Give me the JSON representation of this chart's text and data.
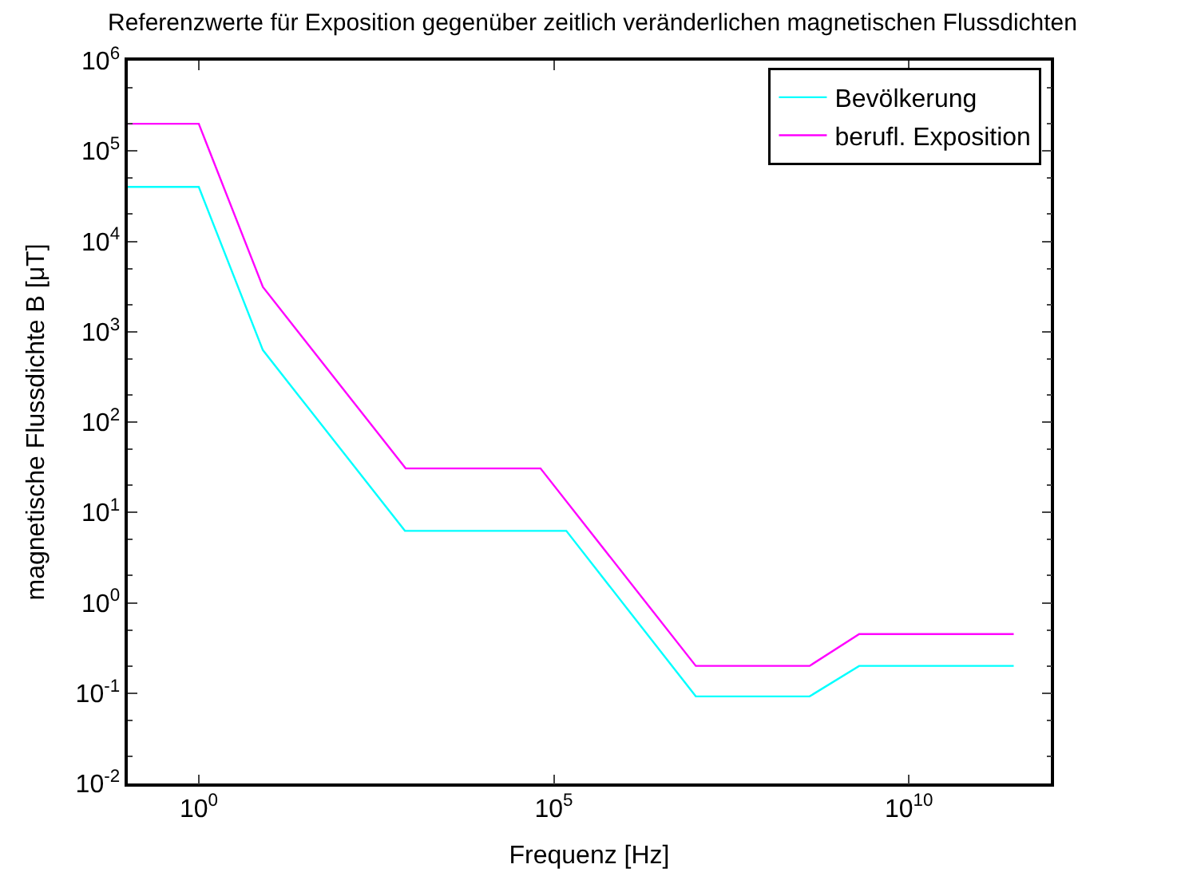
{
  "chart_data": {
    "type": "line",
    "title": "Referenzwerte für Exposition gegenüber zeitlich veränderlichen magnetischen Flussdichten",
    "xlabel": "Frequenz [Hz]",
    "ylabel": "magnetische Flussdichte B [μT]",
    "log": "xy",
    "legend": "top right",
    "marker": "none",
    "line_style": "solid",
    "xlim": [
      0.1,
      1000000000000
    ],
    "ylim": [
      0.01,
      1000000
    ],
    "xticks": [
      {
        "value": 1,
        "label": "10$^{0}$"
      },
      {
        "value": 100000,
        "label": "10$^{5}$"
      },
      {
        "value": 10000000000,
        "label": "10$^{10}$"
      }
    ],
    "yticks": [
      {
        "value": 0.01,
        "label": "10$^{-2}$"
      },
      {
        "value": 0.1,
        "label": "10$^{-1}$"
      },
      {
        "value": 1,
        "label": "10$^{0}$"
      },
      {
        "value": 10,
        "label": "10$^{1}$"
      },
      {
        "value": 100,
        "label": "10$^{2}$"
      },
      {
        "value": 1000,
        "label": "10$^{3}$"
      },
      {
        "value": 10000,
        "label": "10$^{4}$"
      },
      {
        "value": 100000,
        "label": "10$^{5}$"
      },
      {
        "value": 1000000,
        "label": "10$^{6}$"
      }
    ],
    "series": [
      {
        "name": "Bevölkerung",
        "color": "#00ffff",
        "x": [
          0.1,
          1,
          8,
          25,
          800,
          150000,
          10000000,
          400000000,
          2000000000,
          300000000000
        ],
        "values": [
          40000,
          40000,
          625,
          200,
          6.25,
          6.25,
          0.092,
          0.092,
          0.2,
          0.2
        ]
      },
      {
        "name": "berufl. Exposition",
        "color": "#ff00ff",
        "x": [
          0.1,
          1,
          8,
          25,
          820,
          65000,
          10000000,
          400000000,
          2000000000,
          300000000000
        ],
        "values": [
          200000,
          200000,
          3125,
          1000,
          30.7,
          30.7,
          0.2,
          0.2,
          0.45,
          0.45
        ]
      }
    ]
  }
}
